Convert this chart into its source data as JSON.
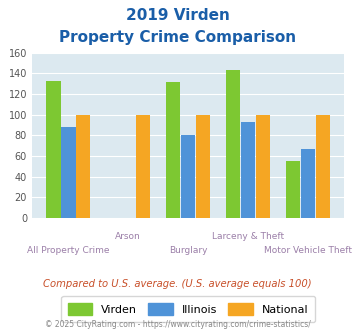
{
  "title_line1": "2019 Virden",
  "title_line2": "Property Crime Comparison",
  "virden": [
    133,
    0,
    132,
    143,
    55
  ],
  "illinois": [
    88,
    0,
    80,
    93,
    67
  ],
  "national": [
    100,
    100,
    100,
    100,
    100
  ],
  "bar_color_virden": "#7dc832",
  "bar_color_illinois": "#4f93d8",
  "bar_color_national": "#f5a623",
  "title_color": "#1a5ea8",
  "label_color": "#9b7fa8",
  "note_color": "#c8502a",
  "footer_color": "#888888",
  "bg_color": "#dce9f0",
  "ylim": [
    0,
    160
  ],
  "yticks": [
    0,
    20,
    40,
    60,
    80,
    100,
    120,
    140,
    160
  ],
  "note_text": "Compared to U.S. average. (U.S. average equals 100)",
  "footer_text": "© 2025 CityRating.com - https://www.cityrating.com/crime-statistics/",
  "legend_labels": [
    "Virden",
    "Illinois",
    "National"
  ],
  "label_top": [
    "",
    "Arson",
    "",
    "Larceny & Theft",
    ""
  ],
  "label_bottom": [
    "All Property Crime",
    "",
    "Burglary",
    "",
    "Motor Vehicle Theft"
  ]
}
